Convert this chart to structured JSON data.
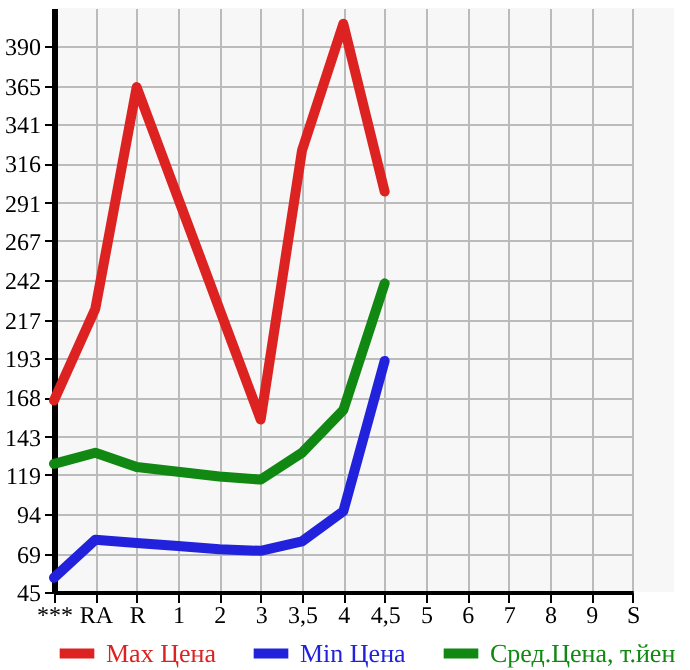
{
  "chart_data": {
    "type": "line",
    "categories": [
      "***",
      "RA",
      "R",
      "1",
      "2",
      "3",
      "3,5",
      "4",
      "4,5",
      "5",
      "6",
      "7",
      "8",
      "9",
      "S"
    ],
    "series": [
      {
        "name": "Max Цена",
        "color": "#dd2222",
        "values": [
          166,
          224,
          364,
          294,
          224,
          154,
          324,
          404,
          298,
          null,
          null,
          null,
          null,
          null,
          null
        ]
      },
      {
        "name": "Min Цена",
        "color": "#2222dd",
        "values": [
          54,
          78,
          76,
          74,
          72,
          71,
          77,
          96,
          191,
          null,
          null,
          null,
          null,
          null,
          null
        ]
      },
      {
        "name": "Сред.Цена, т.йен",
        "color": "#118811",
        "values": [
          126,
          133,
          124,
          121,
          118,
          116,
          133,
          160,
          240,
          null,
          null,
          null,
          null,
          null,
          null
        ]
      }
    ],
    "ylim": [
      45,
      414
    ],
    "yticks": [
      45,
      69,
      94,
      119,
      143,
      168,
      193,
      217,
      242,
      267,
      291,
      316,
      341,
      365,
      390
    ],
    "grid": true,
    "legend": "bottom",
    "marker": "none",
    "line_style": "solid"
  }
}
